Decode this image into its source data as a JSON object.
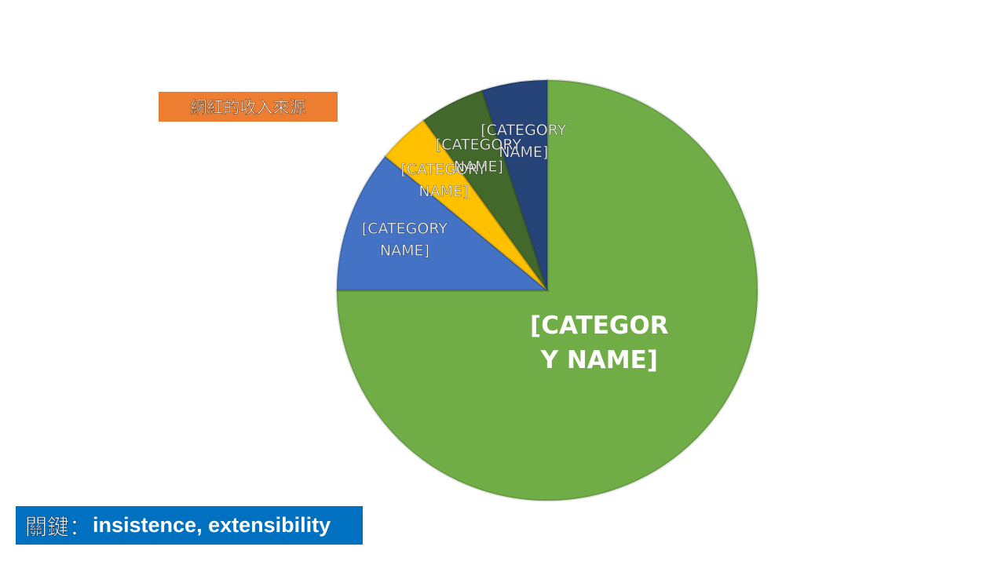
{
  "slide": {
    "title": "網紅的收入來源",
    "title_bg": "#ED7D31",
    "key_prefix": "關鍵：",
    "key_text": "insistence, extensibility",
    "key_bg": "#0070C0"
  },
  "chart_data": {
    "type": "pie",
    "title": "",
    "start_angle_deg": 0,
    "direction": "clockwise",
    "slices": [
      {
        "label": "[CATEGORY NAME]",
        "value": 75,
        "color": "#70AD47"
      },
      {
        "label": "[CATEGORY NAME]",
        "value": 11,
        "color": "#4472C4"
      },
      {
        "label": "[CATEGORY NAME]",
        "value": 4,
        "color": "#FFC000"
      },
      {
        "label": "[CATEGORY NAME]",
        "value": 5,
        "color": "#43682B"
      },
      {
        "label": "[CATEGORY NAME]",
        "value": 5,
        "color": "#264478"
      }
    ]
  }
}
